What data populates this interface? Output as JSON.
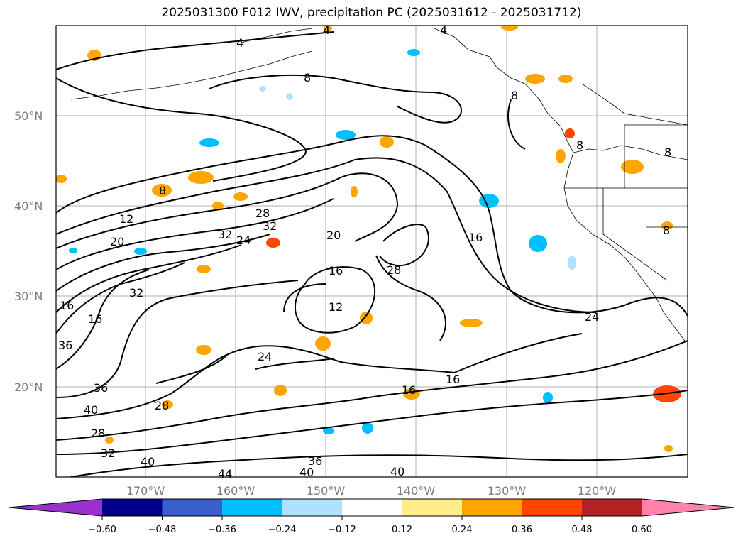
{
  "title": "2025031300 F012 IWV, precipitation PC (2025031612 - 2025031712)",
  "lat_labels": [
    "50°N",
    "40°N",
    "30°N",
    "20°N"
  ],
  "lon_labels": [
    "170°W",
    "160°W",
    "150°W",
    "140°W",
    "130°W",
    "120°W"
  ],
  "contour_labels": [
    {
      "text": "4"
    },
    {
      "text": "4"
    },
    {
      "text": "4"
    },
    {
      "text": "8"
    },
    {
      "text": "8"
    },
    {
      "text": "8"
    },
    {
      "text": "8"
    },
    {
      "text": "12"
    },
    {
      "text": "20"
    },
    {
      "text": "28"
    },
    {
      "text": "32"
    },
    {
      "text": "32"
    },
    {
      "text": "24"
    },
    {
      "text": "20"
    },
    {
      "text": "16"
    },
    {
      "text": "16"
    },
    {
      "text": "28"
    },
    {
      "text": "12"
    },
    {
      "text": "24"
    },
    {
      "text": "24"
    },
    {
      "text": "16"
    },
    {
      "text": "16"
    },
    {
      "text": "36"
    },
    {
      "text": "40"
    },
    {
      "text": "28"
    },
    {
      "text": "32"
    },
    {
      "text": "28"
    },
    {
      "text": "40"
    },
    {
      "text": "44"
    },
    {
      "text": "40"
    },
    {
      "text": "36"
    },
    {
      "text": "40"
    },
    {
      "text": "16"
    },
    {
      "text": "36"
    },
    {
      "text": "32"
    },
    {
      "text": "16"
    },
    {
      "text": "8"
    },
    {
      "text": "8"
    }
  ],
  "colorbar": {
    "ticks": [
      "−0.60",
      "−0.48",
      "−0.36",
      "−0.24",
      "−0.12",
      "0.12",
      "0.24",
      "0.36",
      "0.48",
      "0.60"
    ],
    "colors": [
      "#9932cc",
      "#00008b",
      "#3a5fcd",
      "#00bfff",
      "#b0e2ff",
      "#ffffff",
      "#ffec8b",
      "#ffa500",
      "#ff4500",
      "#b22222",
      "#ff82ab"
    ]
  }
}
